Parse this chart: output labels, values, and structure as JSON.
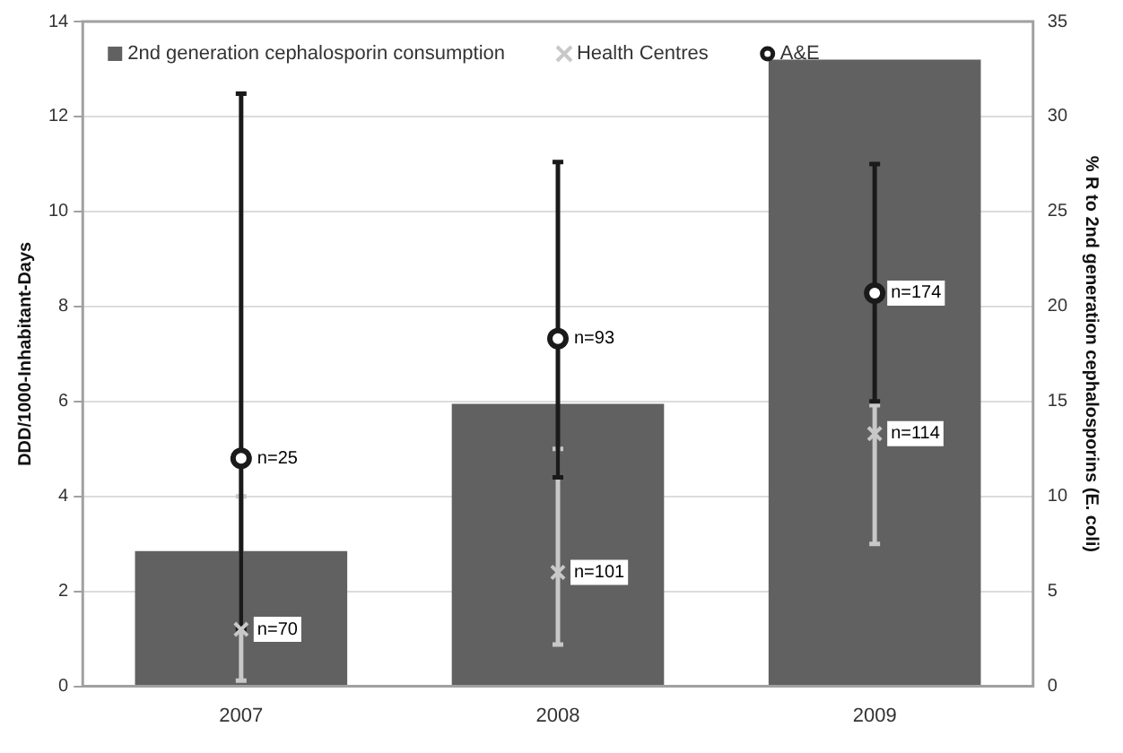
{
  "chart_data": {
    "type": "bar",
    "categories": [
      "2007",
      "2008",
      "2009"
    ],
    "ylabel": "DDD/1000-Inhabitant-Days",
    "y2label": "% R to 2nd generation cephalosporins (E. coli)",
    "ylim": [
      0,
      14
    ],
    "yticks": [
      0,
      2,
      4,
      6,
      8,
      10,
      12,
      14
    ],
    "y2lim": [
      0,
      35
    ],
    "y2ticks": [
      0,
      5,
      10,
      15,
      20,
      25,
      30,
      35
    ],
    "grid": "y",
    "legend": "top left",
    "annotations": [
      {
        "text": "n=70",
        "x": "2007",
        "y": 1.2
      },
      {
        "text": "n=101",
        "x": "2008",
        "y": 2.4
      },
      {
        "text": "n=114",
        "x": "2009",
        "y": 5.32
      },
      {
        "text": "n=25",
        "x": "2007",
        "y": 4.8
      },
      {
        "text": "n=93",
        "x": "2008",
        "y": 7.32
      },
      {
        "text": "n=174",
        "x": "2009",
        "y": 8.28
      }
    ],
    "series": [
      {
        "name": "2nd generation cephalosporin consumption",
        "color": "#616161",
        "values": [
          2.85,
          5.95,
          13.2
        ]
      },
      {
        "name": "Health Centres",
        "type": "scatter",
        "axis": "y2",
        "marker": "cross",
        "color": "#c8c8c8",
        "values": [
          3.0,
          6.0,
          13.3
        ],
        "errors": [
          [
            0.3,
            10
          ],
          [
            2.2,
            12.5
          ],
          [
            7.5,
            14.8
          ]
        ]
      },
      {
        "name": "A&E",
        "type": "scatter",
        "axis": "y2",
        "marker": "circle",
        "color": "#1a1a1a",
        "values": [
          12,
          18.3,
          20.7
        ],
        "errors": [
          [
            3,
            31.2
          ],
          [
            11,
            27.6
          ],
          [
            15,
            27.5
          ]
        ]
      }
    ]
  }
}
